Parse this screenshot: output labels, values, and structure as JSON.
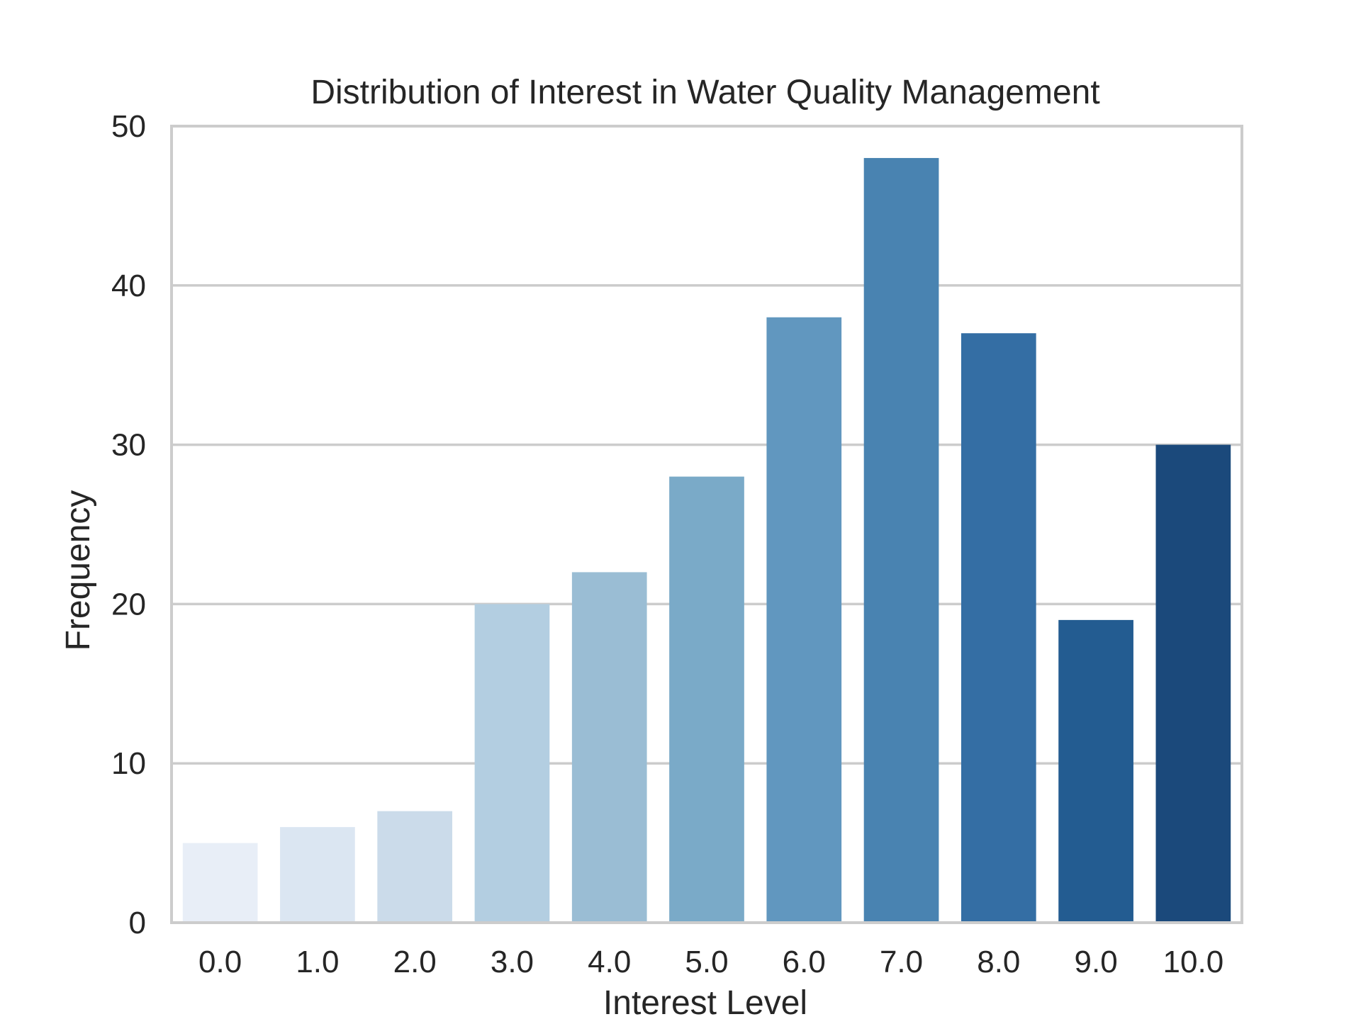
{
  "chart_data": {
    "type": "bar",
    "title": "Distribution of Interest in Water Quality Management",
    "xlabel": "Interest Level",
    "ylabel": "Frequency",
    "categories": [
      "0.0",
      "1.0",
      "2.0",
      "3.0",
      "4.0",
      "5.0",
      "6.0",
      "7.0",
      "8.0",
      "9.0",
      "10.0"
    ],
    "values": [
      5,
      6,
      7,
      20,
      22,
      28,
      38,
      48,
      37,
      19,
      30
    ],
    "ylim": [
      0,
      50
    ],
    "yticks": [
      "0",
      "10",
      "20",
      "30",
      "40",
      "50"
    ],
    "grid": "horizontal",
    "colors": [
      "#e8eef7",
      "#dbe6f2",
      "#cbdbea",
      "#b3cee1",
      "#9abdd4",
      "#7aaac8",
      "#6197bf",
      "#4983b1",
      "#346ea4",
      "#235c91",
      "#1b497b"
    ]
  },
  "style": {
    "grid_color": "#cccccc",
    "frame_color": "#cccccc",
    "text_color": "#262626"
  }
}
